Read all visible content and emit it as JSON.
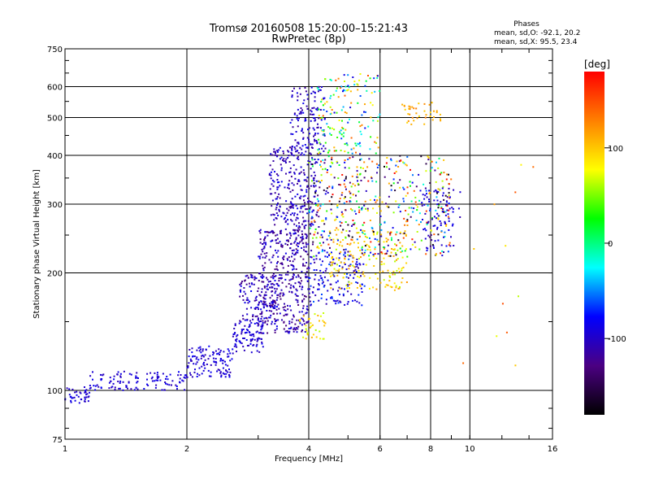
{
  "chart_data": {
    "type": "scatter",
    "title": "Tromsø 20160508 15:20:00–15:21:43",
    "subtitle": "RwPretec (8p)",
    "xlabel": "Frequency [MHz]",
    "ylabel": "Stationary phase Virtual Height [km]",
    "xscale": "log",
    "yscale": "log",
    "xlim": [
      1,
      16
    ],
    "ylim": [
      75,
      750
    ],
    "xticks": [
      1,
      2,
      4,
      6,
      8,
      10,
      16
    ],
    "yticks": [
      75,
      100,
      200,
      300,
      400,
      500,
      600,
      750
    ],
    "grid": true,
    "stats": {
      "heading": "Phases",
      "line_o": "mean, sd,O: -92.1, 20.2",
      "line_x": "mean, sd,X:  95.5, 23.4"
    },
    "colorbar": {
      "label": "[deg]",
      "range": [
        -180,
        180
      ],
      "ticks": [
        100,
        0,
        -100
      ],
      "colors": [
        "#000000",
        "#4b0082",
        "#0000ff",
        "#00ffff",
        "#00ff00",
        "#ffff00",
        "#ff8000",
        "#ff0000"
      ]
    },
    "clusters": [
      {
        "f": [
          1.0,
          1.15
        ],
        "h": [
          92,
          102
        ],
        "phase": [
          -110,
          -80
        ],
        "n": 40
      },
      {
        "f": [
          1.15,
          2.0
        ],
        "h": [
          100,
          112
        ],
        "phase": [
          -110,
          -80
        ],
        "n": 120
      },
      {
        "f": [
          2.0,
          2.6
        ],
        "h": [
          108,
          130
        ],
        "phase": [
          -110,
          -80
        ],
        "n": 120
      },
      {
        "f": [
          2.6,
          3.1
        ],
        "h": [
          125,
          150
        ],
        "phase": [
          -110,
          -80
        ],
        "n": 90
      },
      {
        "f": [
          2.7,
          3.4
        ],
        "h": [
          150,
          200
        ],
        "phase": [
          -130,
          -80
        ],
        "n": 140
      },
      {
        "f": [
          3.0,
          4.0
        ],
        "h": [
          140,
          260
        ],
        "phase": [
          -135,
          -85
        ],
        "n": 420
      },
      {
        "f": [
          3.2,
          4.2
        ],
        "h": [
          260,
          420
        ],
        "phase": [
          -125,
          -85
        ],
        "n": 260
      },
      {
        "f": [
          3.6,
          4.4
        ],
        "h": [
          400,
          600
        ],
        "phase": [
          -120,
          -80
        ],
        "n": 140
      },
      {
        "f": [
          3.8,
          4.4
        ],
        "h": [
          135,
          160
        ],
        "phase": [
          60,
          110
        ],
        "n": 35
      },
      {
        "f": [
          4.0,
          5.5
        ],
        "h": [
          165,
          230
        ],
        "phase": [
          -120,
          -60
        ],
        "n": 160
      },
      {
        "f": [
          4.5,
          7.0
        ],
        "h": [
          180,
          260
        ],
        "phase": [
          60,
          120
        ],
        "n": 180
      },
      {
        "f": [
          4.0,
          9.0
        ],
        "h": [
          220,
          400
        ],
        "phase": [
          -180,
          180
        ],
        "n": 520
      },
      {
        "f": [
          4.2,
          6.0
        ],
        "h": [
          400,
          650
        ],
        "phase": [
          -100,
          150
        ],
        "n": 160
      },
      {
        "f": [
          6.8,
          8.5
        ],
        "h": [
          480,
          550
        ],
        "phase": [
          90,
          130
        ],
        "n": 40
      },
      {
        "f": [
          7.5,
          9.5
        ],
        "h": [
          230,
          330
        ],
        "phase": [
          -110,
          -80
        ],
        "n": 70
      },
      {
        "f": [
          9.5,
          15.0
        ],
        "h": [
          110,
          400
        ],
        "phase": [
          60,
          150
        ],
        "n": 12
      }
    ]
  }
}
